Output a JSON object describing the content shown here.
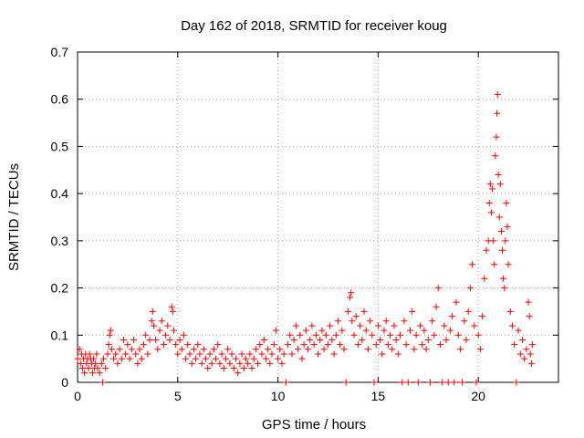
{
  "chart_data": {
    "type": "scatter",
    "title": "Day 162 of 2018, SRMTID for receiver koug",
    "xlabel": "GPS time / hours",
    "ylabel": "SRMTID / TECUs",
    "xlim": [
      0,
      24
    ],
    "ylim": [
      0,
      0.7
    ],
    "xticks": [
      0,
      5,
      10,
      15,
      20
    ],
    "yticks": [
      0,
      0.1,
      0.2,
      0.3,
      0.4,
      0.5,
      0.6,
      0.7
    ],
    "marker": "+",
    "marker_color": "#ff0000",
    "grid": true,
    "series": [
      {
        "name": "SRMTID",
        "points": [
          [
            0.0,
            0.05
          ],
          [
            0.1,
            0.07
          ],
          [
            0.15,
            0.04
          ],
          [
            0.2,
            0.06
          ],
          [
            0.25,
            0.03
          ],
          [
            0.3,
            0.05
          ],
          [
            0.35,
            0.02
          ],
          [
            0.4,
            0.06
          ],
          [
            0.45,
            0.04
          ],
          [
            0.5,
            0.05
          ],
          [
            0.55,
            0.03
          ],
          [
            0.6,
            0.06
          ],
          [
            0.65,
            0.05
          ],
          [
            0.7,
            0.04
          ],
          [
            0.75,
            0.02
          ],
          [
            0.8,
            0.05
          ],
          [
            0.85,
            0.03
          ],
          [
            0.9,
            0.04
          ],
          [
            0.95,
            0.06
          ],
          [
            1.0,
            0.03
          ],
          [
            1.1,
            0.02
          ],
          [
            1.2,
            0.04
          ],
          [
            1.25,
            0.0
          ],
          [
            1.3,
            0.05
          ],
          [
            1.4,
            0.03
          ],
          [
            1.5,
            0.06
          ],
          [
            1.55,
            0.08
          ],
          [
            1.6,
            0.1
          ],
          [
            1.65,
            0.11
          ],
          [
            1.7,
            0.07
          ],
          [
            1.8,
            0.05
          ],
          [
            1.9,
            0.06
          ],
          [
            2.0,
            0.04
          ],
          [
            2.1,
            0.07
          ],
          [
            2.2,
            0.05
          ],
          [
            2.3,
            0.09
          ],
          [
            2.4,
            0.06
          ],
          [
            2.5,
            0.08
          ],
          [
            2.6,
            0.05
          ],
          [
            2.7,
            0.07
          ],
          [
            2.8,
            0.09
          ],
          [
            2.9,
            0.06
          ],
          [
            3.0,
            0.04
          ],
          [
            3.1,
            0.07
          ],
          [
            3.2,
            0.05
          ],
          [
            3.3,
            0.08
          ],
          [
            3.4,
            0.1
          ],
          [
            3.5,
            0.06
          ],
          [
            3.6,
            0.09
          ],
          [
            3.7,
            0.13
          ],
          [
            3.75,
            0.15
          ],
          [
            3.8,
            0.12
          ],
          [
            3.9,
            0.09
          ],
          [
            4.0,
            0.07
          ],
          [
            4.1,
            0.11
          ],
          [
            4.2,
            0.13
          ],
          [
            4.3,
            0.08
          ],
          [
            4.4,
            0.1
          ],
          [
            4.5,
            0.12
          ],
          [
            4.6,
            0.09
          ],
          [
            4.7,
            0.16
          ],
          [
            4.75,
            0.15
          ],
          [
            4.8,
            0.11
          ],
          [
            4.9,
            0.08
          ],
          [
            5.0,
            0.06
          ],
          [
            5.1,
            0.09
          ],
          [
            5.2,
            0.07
          ],
          [
            5.3,
            0.1
          ],
          [
            5.4,
            0.05
          ],
          [
            5.5,
            0.08
          ],
          [
            5.6,
            0.06
          ],
          [
            5.7,
            0.04
          ],
          [
            5.8,
            0.07
          ],
          [
            5.9,
            0.05
          ],
          [
            6.0,
            0.08
          ],
          [
            6.1,
            0.06
          ],
          [
            6.2,
            0.04
          ],
          [
            6.3,
            0.07
          ],
          [
            6.4,
            0.05
          ],
          [
            6.5,
            0.03
          ],
          [
            6.6,
            0.06
          ],
          [
            6.7,
            0.04
          ],
          [
            6.8,
            0.07
          ],
          [
            6.9,
            0.05
          ],
          [
            7.0,
            0.08
          ],
          [
            7.1,
            0.04
          ],
          [
            7.2,
            0.06
          ],
          [
            7.3,
            0.03
          ],
          [
            7.4,
            0.05
          ],
          [
            7.5,
            0.07
          ],
          [
            7.6,
            0.04
          ],
          [
            7.7,
            0.06
          ],
          [
            7.8,
            0.03
          ],
          [
            7.9,
            0.05
          ],
          [
            8.0,
            0.02
          ],
          [
            8.1,
            0.04
          ],
          [
            8.2,
            0.06
          ],
          [
            8.3,
            0.03
          ],
          [
            8.4,
            0.05
          ],
          [
            8.5,
            0.04
          ],
          [
            8.6,
            0.06
          ],
          [
            8.7,
            0.03
          ],
          [
            8.8,
            0.05
          ],
          [
            8.9,
            0.07
          ],
          [
            9.0,
            0.04
          ],
          [
            9.1,
            0.08
          ],
          [
            9.2,
            0.06
          ],
          [
            9.3,
            0.09
          ],
          [
            9.4,
            0.05
          ],
          [
            9.5,
            0.07
          ],
          [
            9.6,
            0.04
          ],
          [
            9.7,
            0.06
          ],
          [
            9.8,
            0.08
          ],
          [
            9.9,
            0.11
          ],
          [
            10.0,
            0.05
          ],
          [
            10.1,
            0.07
          ],
          [
            10.2,
            0.04
          ],
          [
            10.3,
            0.06
          ],
          [
            10.4,
            0.0
          ],
          [
            10.5,
            0.08
          ],
          [
            10.6,
            0.1
          ],
          [
            10.7,
            0.06
          ],
          [
            10.8,
            0.09
          ],
          [
            10.9,
            0.12
          ],
          [
            11.0,
            0.07
          ],
          [
            11.1,
            0.1
          ],
          [
            11.2,
            0.05
          ],
          [
            11.3,
            0.08
          ],
          [
            11.4,
            0.11
          ],
          [
            11.5,
            0.07
          ],
          [
            11.6,
            0.09
          ],
          [
            11.7,
            0.12
          ],
          [
            11.8,
            0.08
          ],
          [
            11.9,
            0.1
          ],
          [
            12.0,
            0.06
          ],
          [
            12.1,
            0.09
          ],
          [
            12.2,
            0.11
          ],
          [
            12.3,
            0.07
          ],
          [
            12.4,
            0.1
          ],
          [
            12.5,
            0.08
          ],
          [
            12.6,
            0.12
          ],
          [
            12.7,
            0.09
          ],
          [
            12.8,
            0.06
          ],
          [
            12.9,
            0.1
          ],
          [
            13.0,
            0.13
          ],
          [
            13.1,
            0.08
          ],
          [
            13.2,
            0.11
          ],
          [
            13.3,
            0.07
          ],
          [
            13.4,
            0.0
          ],
          [
            13.5,
            0.15
          ],
          [
            13.6,
            0.18
          ],
          [
            13.65,
            0.19
          ],
          [
            13.7,
            0.13
          ],
          [
            13.8,
            0.1
          ],
          [
            13.9,
            0.14
          ],
          [
            14.0,
            0.08
          ],
          [
            14.1,
            0.12
          ],
          [
            14.2,
            0.09
          ],
          [
            14.3,
            0.15
          ],
          [
            14.4,
            0.11
          ],
          [
            14.5,
            0.07
          ],
          [
            14.6,
            0.13
          ],
          [
            14.7,
            0.1
          ],
          [
            14.8,
            0.0
          ],
          [
            14.9,
            0.08
          ],
          [
            15.0,
            0.12
          ],
          [
            15.1,
            0.09
          ],
          [
            15.2,
            0.06
          ],
          [
            15.3,
            0.11
          ],
          [
            15.4,
            0.13
          ],
          [
            15.5,
            0.08
          ],
          [
            15.6,
            0.1
          ],
          [
            15.7,
            0.07
          ],
          [
            15.8,
            0.12
          ],
          [
            15.9,
            0.09
          ],
          [
            16.0,
            0.06
          ],
          [
            16.1,
            0.1
          ],
          [
            16.2,
            0.0
          ],
          [
            16.3,
            0.13
          ],
          [
            16.4,
            0.08
          ],
          [
            16.5,
            0.0
          ],
          [
            16.6,
            0.11
          ],
          [
            16.7,
            0.15
          ],
          [
            16.8,
            0.07
          ],
          [
            16.9,
            0.1
          ],
          [
            17.0,
            0.0
          ],
          [
            17.1,
            0.12
          ],
          [
            17.2,
            0.08
          ],
          [
            17.3,
            0.11
          ],
          [
            17.4,
            0.07
          ],
          [
            17.5,
            0.09
          ],
          [
            17.6,
            0.0
          ],
          [
            17.7,
            0.13
          ],
          [
            17.8,
            0.1
          ],
          [
            17.9,
            0.16
          ],
          [
            18.0,
            0.2
          ],
          [
            18.1,
            0.08
          ],
          [
            18.2,
            0.0
          ],
          [
            18.3,
            0.12
          ],
          [
            18.4,
            0.09
          ],
          [
            18.5,
            0.0
          ],
          [
            18.6,
            0.11
          ],
          [
            18.7,
            0.14
          ],
          [
            18.8,
            0.0
          ],
          [
            18.9,
            0.17
          ],
          [
            19.0,
            0.1
          ],
          [
            19.1,
            0.07
          ],
          [
            19.2,
            0.0
          ],
          [
            19.3,
            0.13
          ],
          [
            19.4,
            0.09
          ],
          [
            19.5,
            0.15
          ],
          [
            19.6,
            0.2
          ],
          [
            19.7,
            0.25
          ],
          [
            19.8,
            0.12
          ],
          [
            19.9,
            0.0
          ],
          [
            20.0,
            0.1
          ],
          [
            20.1,
            0.07
          ],
          [
            20.2,
            0.14
          ],
          [
            20.3,
            0.22
          ],
          [
            20.4,
            0.28
          ],
          [
            20.5,
            0.3
          ],
          [
            20.55,
            0.38
          ],
          [
            20.6,
            0.42
          ],
          [
            20.65,
            0.36
          ],
          [
            20.7,
            0.41
          ],
          [
            20.75,
            0.3
          ],
          [
            20.8,
            0.25
          ],
          [
            20.85,
            0.48
          ],
          [
            20.9,
            0.52
          ],
          [
            20.93,
            0.57
          ],
          [
            20.96,
            0.61
          ],
          [
            21.0,
            0.44
          ],
          [
            21.05,
            0.35
          ],
          [
            21.1,
            0.42
          ],
          [
            21.15,
            0.32
          ],
          [
            21.2,
            0.28
          ],
          [
            21.25,
            0.22
          ],
          [
            21.3,
            0.2
          ],
          [
            21.35,
            0.3
          ],
          [
            21.4,
            0.38
          ],
          [
            21.45,
            0.33
          ],
          [
            21.5,
            0.25
          ],
          [
            21.6,
            0.15
          ],
          [
            21.7,
            0.12
          ],
          [
            21.8,
            0.08
          ],
          [
            21.9,
            0.0
          ],
          [
            22.0,
            0.11
          ],
          [
            22.1,
            0.06
          ],
          [
            22.2,
            0.09
          ],
          [
            22.3,
            0.05
          ],
          [
            22.4,
            0.07
          ],
          [
            22.5,
            0.17
          ],
          [
            22.55,
            0.14
          ],
          [
            22.6,
            0.06
          ],
          [
            22.65,
            0.04
          ],
          [
            22.7,
            0.08
          ]
        ]
      }
    ]
  }
}
